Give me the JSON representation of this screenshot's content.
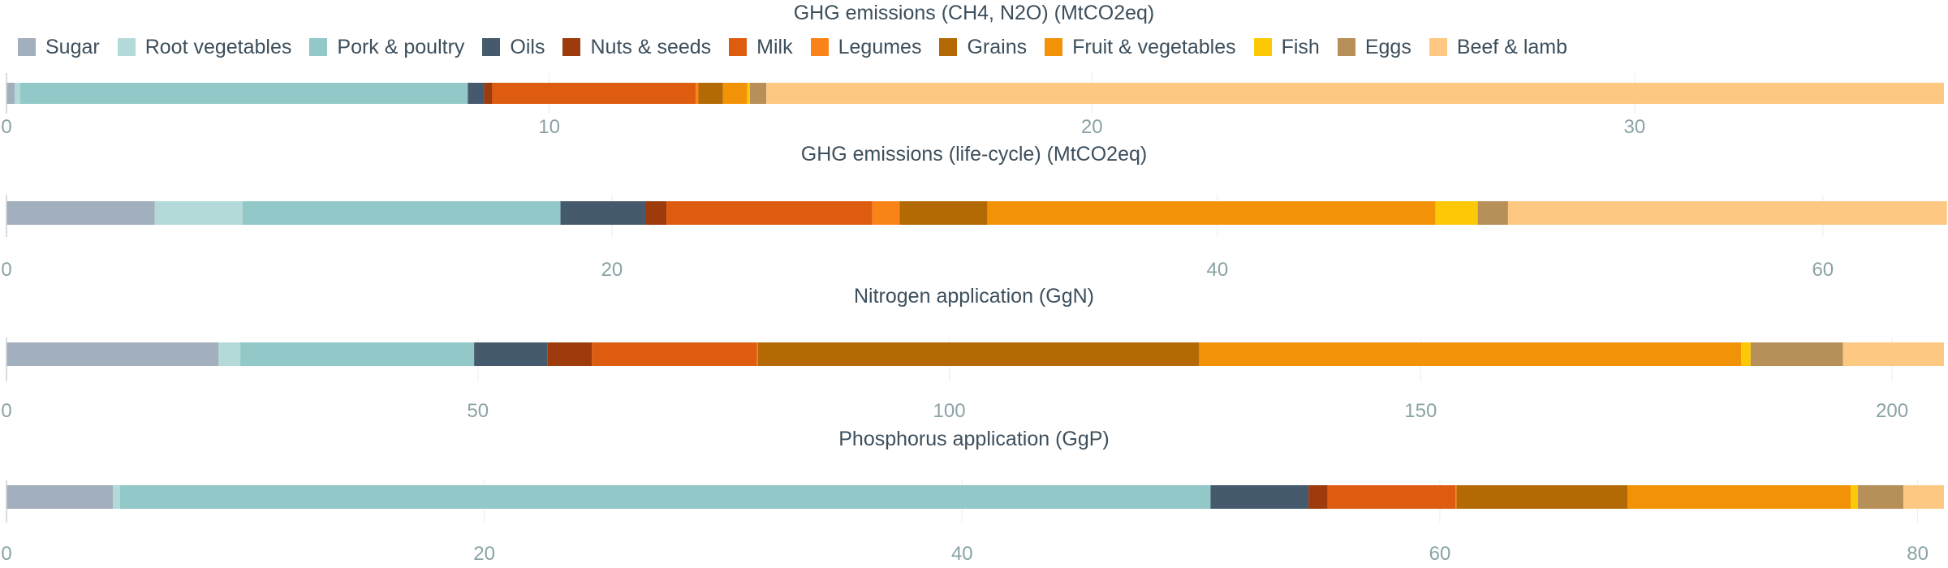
{
  "legend": [
    {
      "name": "Sugar",
      "color": "#a2afbc"
    },
    {
      "name": "Root vegetables",
      "color": "#b3dad9"
    },
    {
      "name": "Pork & poultry",
      "color": "#92c9c8"
    },
    {
      "name": "Oils",
      "color": "#465a6d"
    },
    {
      "name": "Nuts & seeds",
      "color": "#9d3b0c"
    },
    {
      "name": "Milk",
      "color": "#de5c0f"
    },
    {
      "name": "Legumes",
      "color": "#fa8318"
    },
    {
      "name": "Grains",
      "color": "#b36a05"
    },
    {
      "name": "Fruit & vegetables",
      "color": "#f29307"
    },
    {
      "name": "Fish",
      "color": "#fdc806"
    },
    {
      "name": "Eggs",
      "color": "#b68f59"
    },
    {
      "name": "Beef & lamb",
      "color": "#fdc982"
    }
  ],
  "chart_data": [
    {
      "type": "bar",
      "orientation": "horizontal-stacked",
      "title": "GHG emissions (CH4, N2O) (MtCO2eq)",
      "xlim": [
        0,
        35.7
      ],
      "ticks": [
        0,
        10,
        20,
        30
      ],
      "series": [
        {
          "name": "Sugar",
          "value": 0.15
        },
        {
          "name": "Root vegetables",
          "value": 0.1
        },
        {
          "name": "Pork & poultry",
          "value": 8.25
        },
        {
          "name": "Oils",
          "value": 0.3
        },
        {
          "name": "Nuts & seeds",
          "value": 0.15
        },
        {
          "name": "Milk",
          "value": 3.75
        },
        {
          "name": "Legumes",
          "value": 0.05
        },
        {
          "name": "Grains",
          "value": 0.45
        },
        {
          "name": "Fruit & vegetables",
          "value": 0.45
        },
        {
          "name": "Fish",
          "value": 0.05
        },
        {
          "name": "Eggs",
          "value": 0.3
        },
        {
          "name": "Beef & lamb",
          "value": 21.7
        }
      ]
    },
    {
      "type": "bar",
      "orientation": "horizontal-stacked",
      "title": "GHG emissions (life-cycle) (MtCO2eq)",
      "xlim": [
        0,
        64
      ],
      "ticks": [
        0,
        20,
        40,
        60
      ],
      "series": [
        {
          "name": "Sugar",
          "value": 4.9
        },
        {
          "name": "Root vegetables",
          "value": 2.9
        },
        {
          "name": "Pork & poultry",
          "value": 10.5
        },
        {
          "name": "Oils",
          "value": 2.8
        },
        {
          "name": "Nuts & seeds",
          "value": 0.7
        },
        {
          "name": "Milk",
          "value": 6.8
        },
        {
          "name": "Legumes",
          "value": 0.9
        },
        {
          "name": "Grains",
          "value": 2.9
        },
        {
          "name": "Fruit & vegetables",
          "value": 14.8
        },
        {
          "name": "Fish",
          "value": 1.4
        },
        {
          "name": "Eggs",
          "value": 1.0
        },
        {
          "name": "Beef & lamb",
          "value": 14.5
        }
      ]
    },
    {
      "type": "bar",
      "orientation": "horizontal-stacked",
      "title": "Nitrogen application (GgN)",
      "xlim": [
        0,
        205.5
      ],
      "ticks": [
        0,
        50,
        100,
        150,
        200
      ],
      "series": [
        {
          "name": "Sugar",
          "value": 22.5
        },
        {
          "name": "Root vegetables",
          "value": 2.3
        },
        {
          "name": "Pork & poultry",
          "value": 24.8
        },
        {
          "name": "Oils",
          "value": 7.8
        },
        {
          "name": "Nuts & seeds",
          "value": 4.7
        },
        {
          "name": "Milk",
          "value": 17.5
        },
        {
          "name": "Legumes",
          "value": 0.1
        },
        {
          "name": "Grains",
          "value": 46.8
        },
        {
          "name": "Fruit & vegetables",
          "value": 57.5
        },
        {
          "name": "Fish",
          "value": 1.0
        },
        {
          "name": "Eggs",
          "value": 9.8
        },
        {
          "name": "Beef & lamb",
          "value": 10.7
        }
      ]
    },
    {
      "type": "bar",
      "orientation": "horizontal-stacked",
      "title": "Phosphorus application (GgP)",
      "xlim": [
        0,
        81.1
      ],
      "ticks": [
        0,
        20,
        40,
        60,
        80
      ],
      "series": [
        {
          "name": "Sugar",
          "value": 4.45
        },
        {
          "name": "Root vegetables",
          "value": 0.3
        },
        {
          "name": "Pork & poultry",
          "value": 45.65
        },
        {
          "name": "Oils",
          "value": 4.1
        },
        {
          "name": "Nuts & seeds",
          "value": 0.8
        },
        {
          "name": "Milk",
          "value": 5.35
        },
        {
          "name": "Legumes",
          "value": 0.05
        },
        {
          "name": "Grains",
          "value": 7.15
        },
        {
          "name": "Fruit & vegetables",
          "value": 9.35
        },
        {
          "name": "Fish",
          "value": 0.3
        },
        {
          "name": "Eggs",
          "value": 1.9
        },
        {
          "name": "Beef & lamb",
          "value": 1.7
        }
      ]
    }
  ]
}
